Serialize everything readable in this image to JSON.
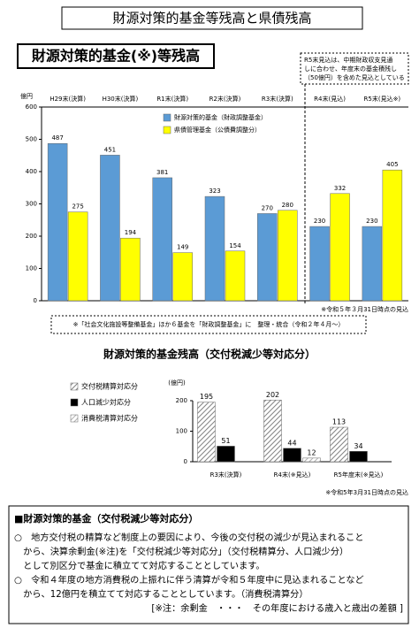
{
  "header": {
    "title": "財源対策的基金等残高と県債残高"
  },
  "chart_data": [
    {
      "type": "bar",
      "title": "財源対策的基金(※)等残高",
      "y_label": "億円",
      "categories": [
        "H29末(決算)",
        "H30末(決算)",
        "R1末(決算)",
        "R2末(決算)",
        "R3末(決算)",
        "R4末(見込)",
        "R5末(見込※)"
      ],
      "series": [
        {
          "name": "財源対策的基金（財政調整基金）",
          "color": "#5b9bd5",
          "values": [
            487,
            451,
            381,
            323,
            270,
            230,
            230
          ]
        },
        {
          "name": "県債管理基金（公債費調整分）",
          "color": "#ffff00",
          "values": [
            275,
            194,
            149,
            154,
            280,
            332,
            405
          ]
        }
      ],
      "ylim": [
        0,
        600
      ],
      "yticks": [
        0,
        100,
        200,
        300,
        400,
        500,
        600
      ],
      "annotation": [
        "R5末見込は、中期財政収支見通",
        "しに合わせ、年度末の基金積残し",
        "（50億円）を含めた見込としている"
      ],
      "note": "※令和５年３月31日時点の見込",
      "footnote": "※「社会文化施設等整備基金」ほか６基金を「財政調整基金」に　整理・統合（令和２年４月～）"
    },
    {
      "type": "bar",
      "title": "財源対策的基金残高（交付税減少等対応分）",
      "y_label": "(億円)",
      "categories": [
        "R3末(決算)",
        "R4末(※見込)",
        "R5年度末(※見込)"
      ],
      "series": [
        {
          "name": "交付税精算対応分",
          "color": "#808080",
          "hatch": true,
          "values": [
            195,
            202,
            113
          ]
        },
        {
          "name": "人口減少対応分",
          "color": "#000000",
          "hatch": false,
          "values": [
            51,
            44,
            34
          ]
        },
        {
          "name": "消費税清算対応分",
          "color": "#b0b0b0",
          "hatch": true,
          "values": [
            null,
            12,
            null
          ]
        }
      ],
      "ylim": [
        0,
        200
      ],
      "yticks": [
        0,
        100,
        200
      ],
      "note": "※令和5年3月31日時点の見込"
    }
  ],
  "box": {
    "heading": "■財源対策的基金（交付税減少等対応分）",
    "lines": [
      "○　地方交付税の精算など制度上の要因により、今後の交付税の減少が見込まれること",
      "　から、決算余剰金(※注)を「交付税減少等対応分」（交付税精算分、人口減少分）",
      "　として別区分で基金に積立てて対応することとしています。",
      "○　令和４年度の地方消費税の上振れに伴う清算が令和５年度中に見込まれることなど",
      "　から、12億円を積立てて対応することとしています。（消費税清算分）",
      "[※注：余剰金　・・・　その年度における歳入と歳出の差額 ]"
    ]
  }
}
